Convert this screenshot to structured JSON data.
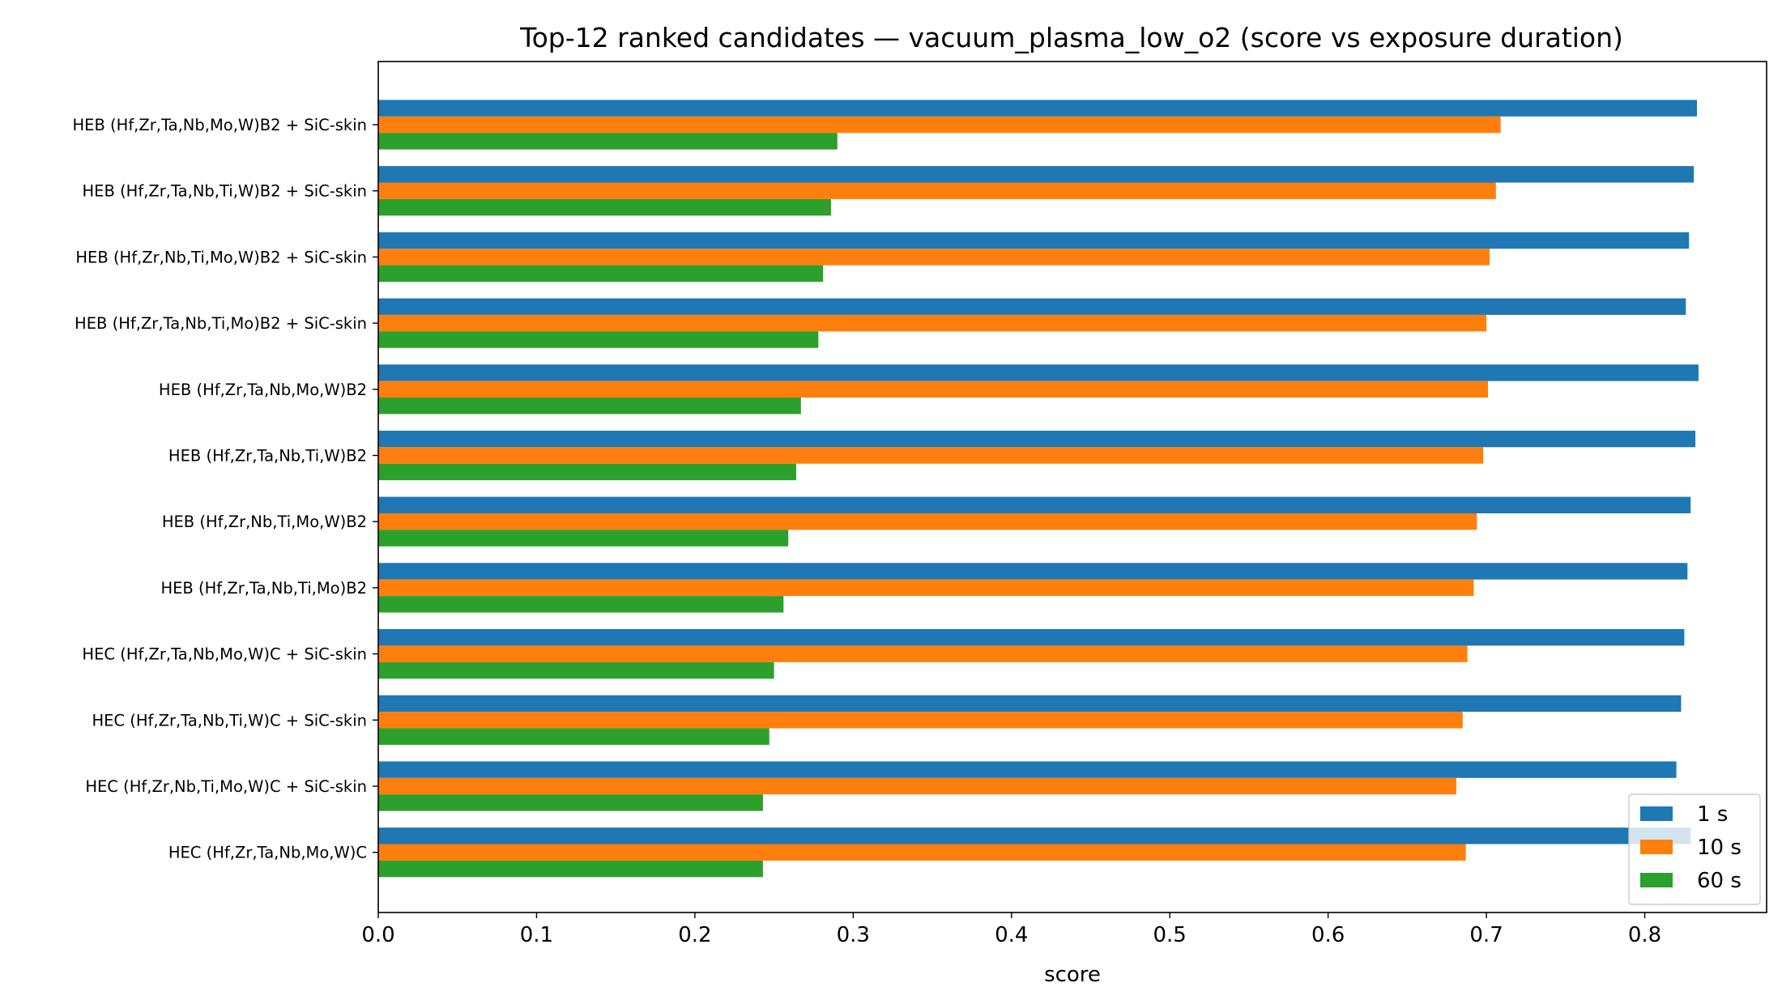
{
  "chart_data": {
    "type": "bar",
    "orientation": "horizontal",
    "title": "Top-12 ranked candidates — vacuum_plasma_low_o2 (score vs exposure duration)",
    "xlabel": "score",
    "ylabel": "",
    "xlim": [
      0,
      0.877
    ],
    "xticks": [
      "0.0",
      "0.1",
      "0.2",
      "0.3",
      "0.4",
      "0.5",
      "0.6",
      "0.7",
      "0.8"
    ],
    "grid": false,
    "legend_position": "lower right",
    "categories": [
      "HEB (Hf,Zr,Ta,Nb,Mo,W)B2 + SiC-skin",
      "HEB (Hf,Zr,Ta,Nb,Ti,W)B2 + SiC-skin",
      "HEB (Hf,Zr,Nb,Ti,Mo,W)B2 + SiC-skin",
      "HEB (Hf,Zr,Ta,Nb,Ti,Mo)B2 + SiC-skin",
      "HEB (Hf,Zr,Ta,Nb,Mo,W)B2",
      "HEB (Hf,Zr,Ta,Nb,Ti,W)B2",
      "HEB (Hf,Zr,Nb,Ti,Mo,W)B2",
      "HEB (Hf,Zr,Ta,Nb,Ti,Mo)B2",
      "HEC (Hf,Zr,Ta,Nb,Mo,W)C + SiC-skin",
      "HEC (Hf,Zr,Ta,Nb,Ti,W)C + SiC-skin",
      "HEC (Hf,Zr,Nb,Ti,Mo,W)C + SiC-skin",
      "HEC (Hf,Zr,Ta,Nb,Mo,W)C"
    ],
    "series": [
      {
        "name": "1 s",
        "color": "#1f77b4",
        "values": [
          0.833,
          0.831,
          0.828,
          0.826,
          0.834,
          0.832,
          0.829,
          0.827,
          0.825,
          0.823,
          0.82,
          0.829
        ]
      },
      {
        "name": "10 s",
        "color": "#ff7f0e",
        "values": [
          0.709,
          0.706,
          0.702,
          0.7,
          0.701,
          0.698,
          0.694,
          0.692,
          0.688,
          0.685,
          0.681,
          0.687
        ]
      },
      {
        "name": "60 s",
        "color": "#2ca02c",
        "values": [
          0.29,
          0.286,
          0.281,
          0.278,
          0.267,
          0.264,
          0.259,
          0.256,
          0.25,
          0.247,
          0.243,
          0.243
        ]
      }
    ]
  }
}
